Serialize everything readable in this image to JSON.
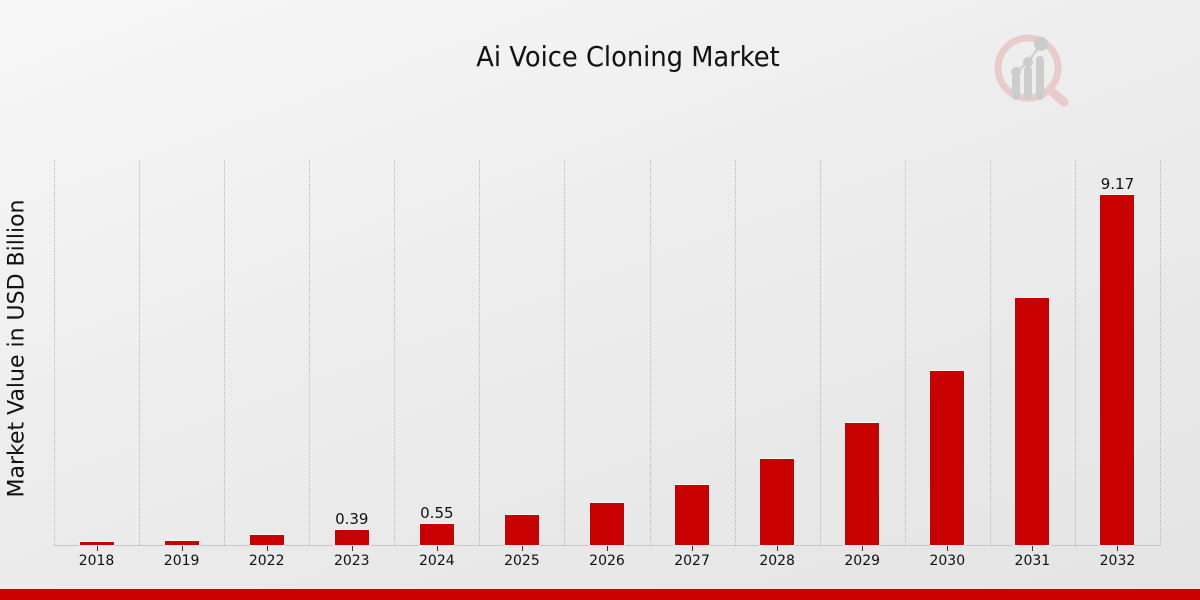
{
  "title": "Ai Voice Cloning Market",
  "ylabel": "Market Value in USD Billion",
  "colors": {
    "bar": "#c80000",
    "footer": "#c80000"
  },
  "logo_icon": "analytics-magnifier-icon",
  "chart_data": {
    "type": "bar",
    "title": "Ai Voice Cloning Market",
    "xlabel": "",
    "ylabel": "Market Value in USD Billion",
    "categories": [
      "2018",
      "2019",
      "2022",
      "2023",
      "2024",
      "2025",
      "2026",
      "2027",
      "2028",
      "2029",
      "2030",
      "2031",
      "2032"
    ],
    "values": [
      0.08,
      0.1,
      0.26,
      0.39,
      0.55,
      0.79,
      1.1,
      1.57,
      2.25,
      3.19,
      4.55,
      6.47,
      9.17
    ],
    "data_labels": {
      "2023": "0.39",
      "2024": "0.55",
      "2032": "9.17"
    },
    "ylim": [
      0,
      10.08
    ],
    "grid": "vertical dotted",
    "legend": "none"
  }
}
